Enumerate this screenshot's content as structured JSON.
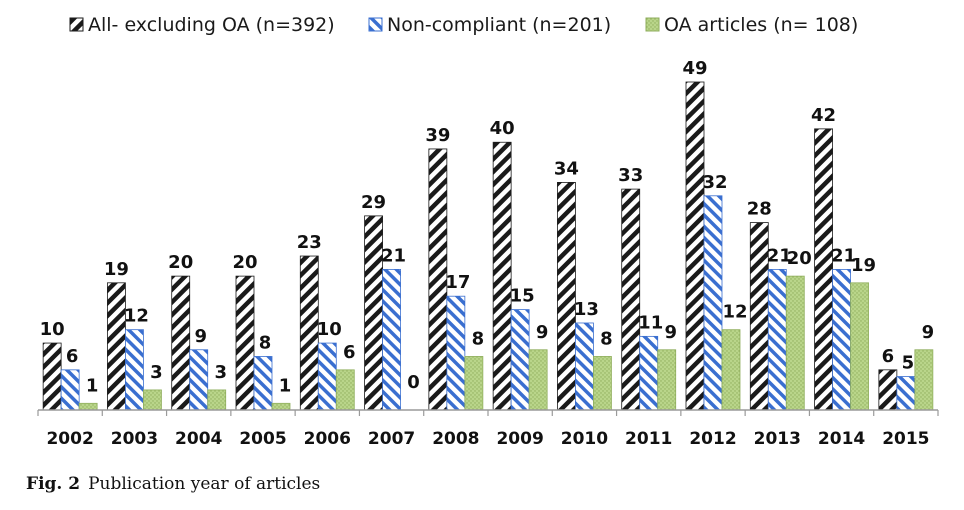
{
  "caption": {
    "label": "Fig. 2",
    "text": "Publication year of articles"
  },
  "colors": {
    "all": "#1a1a1a",
    "noncompliant": "#3a6fd0",
    "oa": "#b9d58a",
    "axis": "#9a9a9a"
  },
  "chart_data": {
    "type": "bar",
    "categories": [
      "2002",
      "2003",
      "2004",
      "2005",
      "2006",
      "2007",
      "2008",
      "2009",
      "2010",
      "2011",
      "2012",
      "2013",
      "2014",
      "2015"
    ],
    "series": [
      {
        "name": "All- excluding OA (n=392)",
        "values": [
          10,
          19,
          20,
          20,
          23,
          29,
          39,
          40,
          34,
          33,
          49,
          28,
          42,
          6
        ]
      },
      {
        "name": "Non-compliant (n=201)",
        "values": [
          6,
          12,
          9,
          8,
          10,
          21,
          17,
          15,
          13,
          11,
          32,
          21,
          21,
          5
        ]
      },
      {
        "name": "OA articles (n= 108)",
        "values": [
          1,
          3,
          3,
          1,
          6,
          0,
          8,
          9,
          8,
          9,
          12,
          20,
          19,
          9
        ]
      }
    ],
    "ylim": [
      0,
      49
    ],
    "legend_position": "top",
    "grid": false
  }
}
